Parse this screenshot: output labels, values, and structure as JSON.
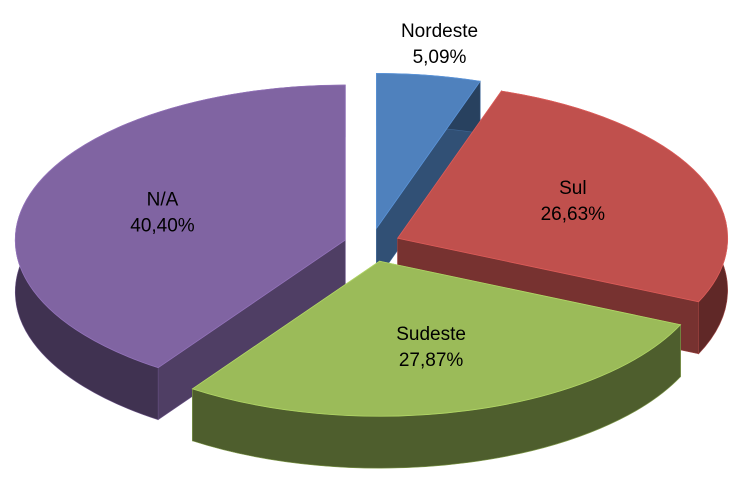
{
  "chart_data": {
    "type": "pie",
    "categories": [
      "Nordeste",
      "Sul",
      "Sudeste",
      "N/A"
    ],
    "values": [
      5.09,
      26.63,
      27.87,
      40.4
    ],
    "value_labels": [
      "5,09%",
      "26,63%",
      "27,87%",
      "40,40%"
    ],
    "colors": [
      "#4f81bd",
      "#c0504d",
      "#9bbb59",
      "#8064a2"
    ]
  }
}
